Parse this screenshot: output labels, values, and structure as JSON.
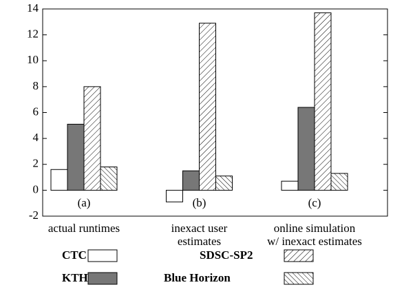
{
  "chart_data": {
    "type": "bar",
    "categories": [
      "(a)",
      "(b)",
      "(c)"
    ],
    "descriptions": [
      [
        "actual runtimes"
      ],
      [
        "inexact user",
        "estimates"
      ],
      [
        "online simulation",
        "w/ inexact estimates"
      ]
    ],
    "series": [
      {
        "name": "CTC",
        "color": "#ffffff",
        "pattern": "solid",
        "values": [
          1.6,
          -0.9,
          0.7
        ]
      },
      {
        "name": "KTH",
        "color": "#777777",
        "pattern": "solid",
        "values": [
          5.1,
          1.5,
          6.4
        ]
      },
      {
        "name": "SDSC-SP2",
        "color": "#ffffff",
        "pattern": "hatch-forward",
        "values": [
          8.0,
          12.9,
          13.7
        ]
      },
      {
        "name": "Blue Horizon",
        "color": "#ffffff",
        "pattern": "hatch-back",
        "values": [
          1.8,
          1.1,
          1.3
        ]
      }
    ],
    "ylim": [
      -2,
      14
    ],
    "yticks": [
      -2,
      0,
      2,
      4,
      6,
      8,
      10,
      12,
      14
    ]
  }
}
